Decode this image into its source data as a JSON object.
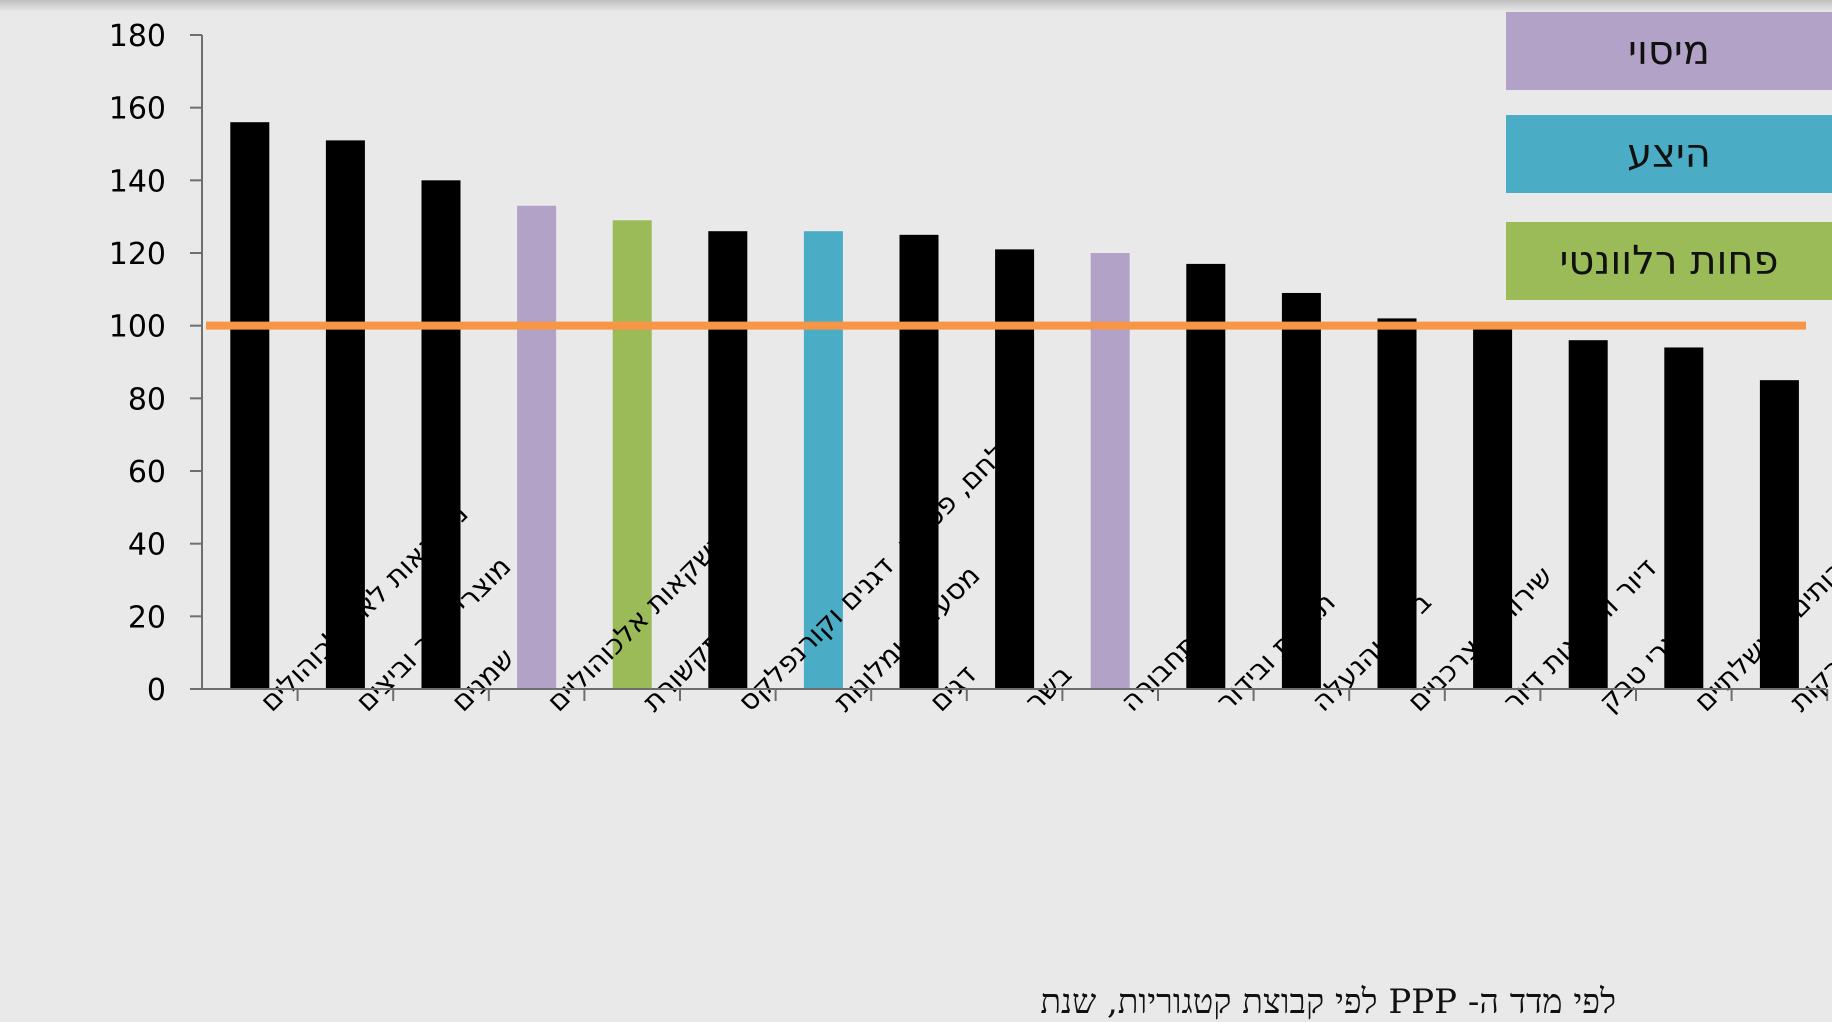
{
  "chart_data": {
    "type": "bar",
    "categories": [
      "משקאות לא אלכוהולים",
      "מוצרי חלב וביצים",
      "שמנים",
      "משקאות אלכוהוליים",
      "תקשורת",
      "לחם, פסטה, דגנים וקורנפלקס",
      "מסעדות ומלונות",
      "דגים",
      "בשר",
      "תחבורה",
      "תרבות ובידור",
      "ביגוד והנעלה",
      "שירותים צרכניים",
      "דיור והוצאות דיור",
      "מוצרי טבק",
      "שירותים ממשלתיים",
      "פירות וירקות"
    ],
    "values": [
      156,
      151,
      140,
      133,
      129,
      126,
      126,
      125,
      121,
      120,
      117,
      109,
      102,
      99,
      96,
      94,
      85
    ],
    "bar_colors": [
      "#000000",
      "#000000",
      "#000000",
      "#b3a2c8",
      "#9bbb59",
      "#000000",
      "#4bacc6",
      "#000000",
      "#000000",
      "#b3a2c8",
      "#000000",
      "#000000",
      "#000000",
      "#000000",
      "#000000",
      "#000000",
      "#000000"
    ],
    "y_ticks": [
      "0",
      "20",
      "40",
      "60",
      "80",
      "100",
      "120",
      "140",
      "160",
      "180"
    ],
    "ylim": [
      0,
      180
    ],
    "reference_line": {
      "value": 100,
      "color": "#f79646"
    },
    "legend": [
      {
        "label": "מיסוי",
        "color": "#b3a2c8"
      },
      {
        "label": "היצע",
        "color": "#4bacc6"
      },
      {
        "label": "פחות רלוונטי",
        "color": "#9bbb59"
      }
    ],
    "legend_position": "top-right",
    "title": "",
    "xlabel": "",
    "ylabel": ""
  },
  "caption": "לפי מדד ה- PPP לפי קבוצת קטגוריות, שנת"
}
